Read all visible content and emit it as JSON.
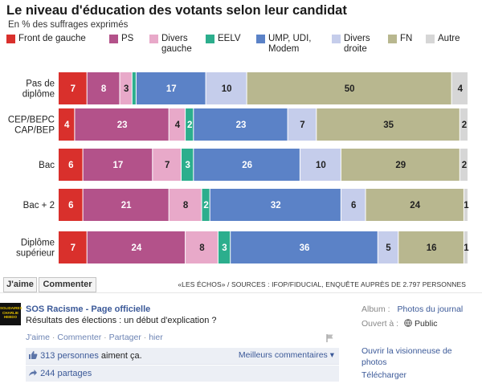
{
  "chart": {
    "title": "Le niveau d'éducation des votants selon leur candidat",
    "subtitle": "En % des suffrages exprimés",
    "source": "«LES ÉCHOS» / SOURCES : IFOP/FIDUCIAL, ENQUÊTE AUPRÈS DE 2.797 PERSONNES"
  },
  "legend": [
    {
      "label": "Front de gauche",
      "color": "#d9302c"
    },
    {
      "label": "PS",
      "color": "#b3528a"
    },
    {
      "label": "Divers gauche",
      "color": "#e8a9c9"
    },
    {
      "label": "EELV",
      "color": "#2cae8d"
    },
    {
      "label": "UMP, UDI, Modem",
      "color": "#5b82c7"
    },
    {
      "label": "Divers droite",
      "color": "#c5cdeb"
    },
    {
      "label": "FN",
      "color": "#b8b78f"
    },
    {
      "label": "Autre",
      "color": "#d6d6d6"
    }
  ],
  "chart_data": {
    "type": "bar",
    "orientation": "horizontal",
    "stacked": true,
    "title": "Le niveau d'éducation des votants selon leur candidat",
    "subtitle": "En % des suffrages exprimés",
    "categories": [
      "Pas de diplôme",
      "CEP/BEPC CAP/BEP",
      "Bac",
      "Bac + 2",
      "Diplôme supérieur"
    ],
    "series": [
      {
        "name": "Front de gauche",
        "values": [
          7,
          4,
          6,
          6,
          7
        ]
      },
      {
        "name": "PS",
        "values": [
          8,
          23,
          17,
          21,
          24
        ]
      },
      {
        "name": "Divers gauche",
        "values": [
          3,
          4,
          7,
          8,
          8
        ]
      },
      {
        "name": "EELV",
        "values": [
          1,
          2,
          3,
          2,
          3
        ]
      },
      {
        "name": "UMP, UDI, Modem",
        "values": [
          17,
          23,
          26,
          32,
          36
        ]
      },
      {
        "name": "Divers droite",
        "values": [
          10,
          7,
          10,
          6,
          5
        ]
      },
      {
        "name": "FN",
        "values": [
          50,
          35,
          29,
          24,
          16
        ]
      },
      {
        "name": "Autre",
        "values": [
          4,
          2,
          2,
          1,
          1
        ]
      }
    ],
    "data_labels": [
      [
        "7",
        "8",
        "3",
        "",
        "17",
        "10",
        "50",
        "4"
      ],
      [
        "4",
        "23",
        "4",
        "2",
        "23",
        "7",
        "35",
        "2"
      ],
      [
        "6",
        "17",
        "7",
        "3",
        "26",
        "10",
        "29",
        "2"
      ],
      [
        "6",
        "21",
        "8",
        "2",
        "32",
        "6",
        "24",
        "1"
      ],
      [
        "7",
        "24",
        "8",
        "3",
        "36",
        "5",
        "16",
        "1"
      ]
    ],
    "row_labels": [
      [
        "Pas de",
        "diplôme"
      ],
      [
        "CEP/BEPC",
        "CAP/BEP"
      ],
      [
        "Bac"
      ],
      [
        "Bac + 2"
      ],
      [
        "Diplôme",
        "supérieur"
      ]
    ],
    "xlim": [
      0,
      100
    ],
    "grid": false,
    "legend_position": "top"
  },
  "facebook": {
    "like_button": "J'aime",
    "comment_button": "Commenter",
    "avatar_text": "SOLIDAIRES CHARLIE HEBDO",
    "page_name": "SOS Racisme - Page officielle",
    "post_text": "Résultats des élections : un début d'explication ?",
    "actions": {
      "like": "J'aime",
      "comment": "Commenter",
      "share": "Partager",
      "time": "hier"
    },
    "likes_link": "313 personnes",
    "likes_text": " aiment ça.",
    "best_comments": "Meilleurs commentaires",
    "shares": "244 partages",
    "sidebar": {
      "album_label": "Album :",
      "album_value": "Photos du journal",
      "opened_label": "Ouvert à :",
      "opened_value": "Public",
      "open_viewer": "Ouvrir la visionneuse de photos",
      "download": "Télécharger"
    }
  }
}
